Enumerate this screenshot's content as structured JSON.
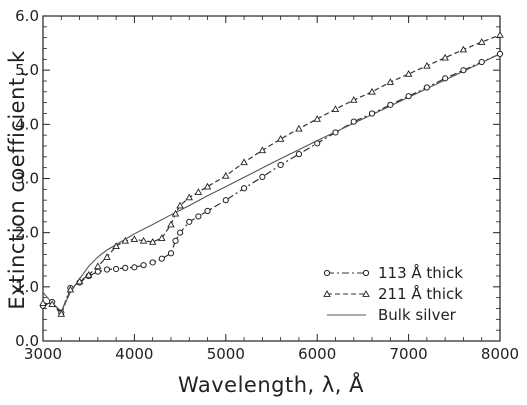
{
  "chart_data": {
    "type": "line",
    "xlabel": "Wavelength, λ, Å",
    "ylabel": "Extinction coefficient, k",
    "xlim": [
      3000,
      8000
    ],
    "ylim": [
      0.0,
      6.0
    ],
    "x_ticks": [
      3000,
      4000,
      5000,
      6000,
      7000,
      8000
    ],
    "y_ticks": [
      0.0,
      1.0,
      2.0,
      3.0,
      4.0,
      5.0,
      6.0
    ],
    "y_tick_labels": [
      "0.0",
      "1.0",
      "2.0",
      "3.0",
      "4.0",
      "5.0",
      "6.0"
    ],
    "grid": false,
    "legend_position": "bottom-right",
    "series": [
      {
        "name": "113 Å thick",
        "marker": "circle",
        "line_style": "dash-dot",
        "color": "#333333",
        "x": [
          3000,
          3100,
          3200,
          3300,
          3400,
          3500,
          3600,
          3700,
          3800,
          3900,
          4000,
          4100,
          4200,
          4300,
          4400,
          4450,
          4500,
          4600,
          4700,
          4800,
          5000,
          5200,
          5400,
          5600,
          5800,
          6000,
          6200,
          6400,
          6600,
          6800,
          7000,
          7200,
          7400,
          7600,
          7800,
          8000
        ],
        "y": [
          0.65,
          0.72,
          0.52,
          0.98,
          1.08,
          1.2,
          1.28,
          1.32,
          1.33,
          1.35,
          1.36,
          1.4,
          1.45,
          1.52,
          1.62,
          1.85,
          2.0,
          2.2,
          2.3,
          2.4,
          2.6,
          2.82,
          3.03,
          3.25,
          3.45,
          3.65,
          3.85,
          4.05,
          4.2,
          4.36,
          4.52,
          4.68,
          4.85,
          5.0,
          5.15,
          5.3
        ]
      },
      {
        "name": "211 Å thick",
        "marker": "triangle",
        "line_style": "dashed",
        "color": "#333333",
        "x": [
          3000,
          3100,
          3200,
          3300,
          3400,
          3500,
          3600,
          3700,
          3800,
          3900,
          4000,
          4100,
          4200,
          4300,
          4400,
          4450,
          4500,
          4600,
          4700,
          4800,
          5000,
          5200,
          5400,
          5600,
          5800,
          6000,
          6200,
          6400,
          6600,
          6800,
          7000,
          7200,
          7400,
          7600,
          7800,
          8000
        ],
        "y": [
          0.7,
          0.68,
          0.5,
          0.95,
          1.1,
          1.22,
          1.38,
          1.55,
          1.75,
          1.85,
          1.88,
          1.85,
          1.83,
          1.9,
          2.15,
          2.35,
          2.5,
          2.65,
          2.75,
          2.85,
          3.05,
          3.3,
          3.52,
          3.73,
          3.92,
          4.1,
          4.28,
          4.45,
          4.6,
          4.78,
          4.93,
          5.08,
          5.23,
          5.38,
          5.52,
          5.65
        ]
      },
      {
        "name": "Bulk silver",
        "marker": "none",
        "line_style": "solid",
        "color": "#555555",
        "x": [
          3000,
          3100,
          3200,
          3300,
          3400,
          3500,
          3600,
          3700,
          3800,
          3900,
          4000,
          4200,
          4400,
          4600,
          4800,
          5000,
          5500,
          6000,
          6500,
          7000,
          7500,
          8000
        ],
        "y": [
          0.9,
          0.7,
          0.55,
          0.9,
          1.15,
          1.38,
          1.55,
          1.68,
          1.78,
          1.88,
          1.98,
          2.15,
          2.33,
          2.5,
          2.68,
          2.85,
          3.28,
          3.7,
          4.1,
          4.5,
          4.9,
          5.3
        ]
      }
    ]
  }
}
